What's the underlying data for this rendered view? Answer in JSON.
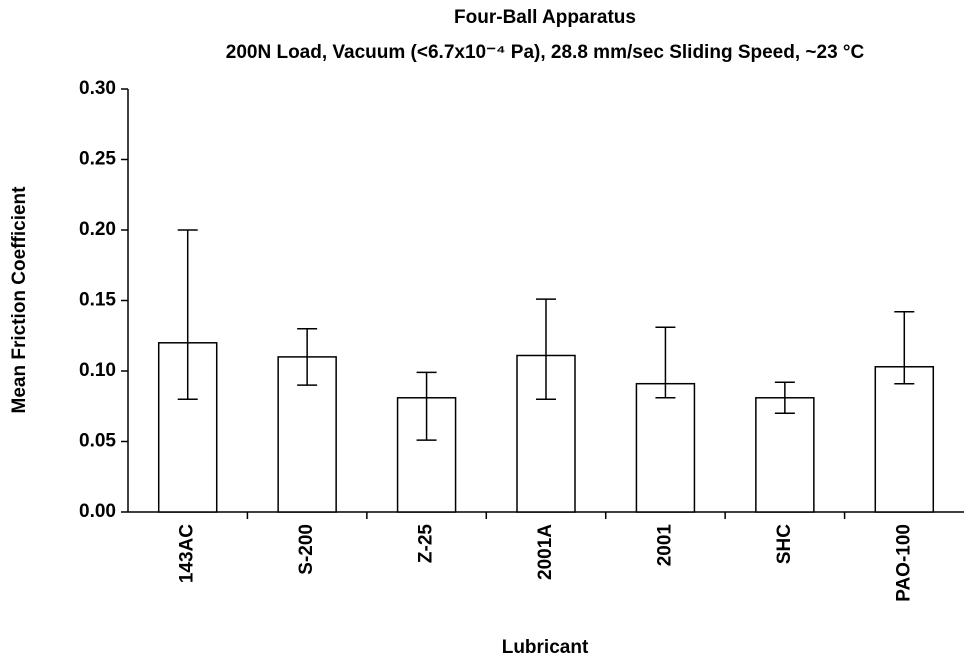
{
  "chart_data": {
    "type": "bar",
    "title": "Four-Ball Apparatus",
    "subtitle": "200N Load, Vacuum (<6.7x10⁻⁴ Pa), 28.8 mm/sec Sliding Speed, ~23 °C",
    "x_label": "Lubricant",
    "y_label": "Mean Friction Coefficient",
    "categories": [
      "143AC",
      "S-200",
      "Z-25",
      "2001A",
      "2001",
      "SHC",
      "PAO-100"
    ],
    "values": [
      0.12,
      0.11,
      0.081,
      0.111,
      0.091,
      0.081,
      0.103
    ],
    "error_minus": [
      0.04,
      0.02,
      0.03,
      0.031,
      0.01,
      0.011,
      0.012
    ],
    "error_plus": [
      0.08,
      0.02,
      0.018,
      0.04,
      0.04,
      0.011,
      0.039
    ],
    "color": "#ffffff",
    "ylim": [
      0,
      0.3
    ],
    "yticks": [
      {
        "value": 0,
        "label": "0.00"
      },
      {
        "value": 0.05,
        "label": "0.05"
      },
      {
        "value": 0.1,
        "label": "0.10"
      },
      {
        "value": 0.15,
        "label": "0.15"
      },
      {
        "value": 0.2,
        "label": "0.20"
      },
      {
        "value": 0.25,
        "label": "0.25"
      },
      {
        "value": 0.3,
        "label": "0.30"
      }
    ],
    "grid": false
  }
}
